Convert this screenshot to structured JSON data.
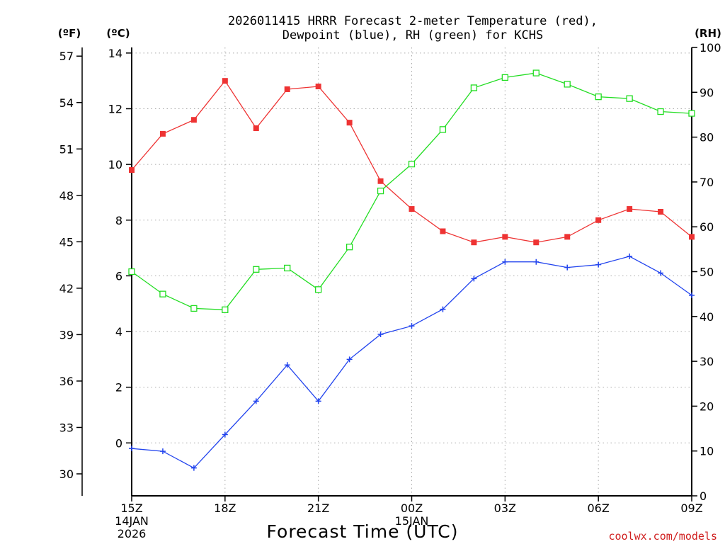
{
  "chart_data": {
    "type": "line",
    "title": "2026011415 HRRR Forecast 2-meter Temperature (red),",
    "subtitle": "Dewpoint (blue), RH (green) for KCHS",
    "xlabel": "Forecast Time (UTC)",
    "left_unit_f": "(ºF)",
    "left_unit_c": "(ºC)",
    "right_unit": "(RH)",
    "credit": "coolwx.com/models",
    "x_hours": [
      0,
      1,
      2,
      3,
      4,
      5,
      6,
      7,
      8,
      9,
      10,
      11,
      12,
      13,
      14,
      15,
      16,
      17,
      18
    ],
    "x_ticks": [
      {
        "hour": 0,
        "lines": [
          "15Z",
          "14JAN",
          "2026"
        ]
      },
      {
        "hour": 3,
        "lines": [
          "18Z"
        ]
      },
      {
        "hour": 6,
        "lines": [
          "21Z"
        ]
      },
      {
        "hour": 9,
        "lines": [
          "00Z",
          "15JAN"
        ]
      },
      {
        "hour": 12,
        "lines": [
          "03Z"
        ]
      },
      {
        "hour": 15,
        "lines": [
          "06Z"
        ]
      },
      {
        "hour": 18,
        "lines": [
          "09Z"
        ]
      }
    ],
    "y_celsius": {
      "range": [
        -1.9,
        14.2
      ],
      "ticks": [
        0,
        2,
        4,
        6,
        8,
        10,
        12,
        14
      ]
    },
    "y_fahrenheit": {
      "ticks": [
        30,
        33,
        36,
        39,
        42,
        45,
        48,
        51,
        54,
        57
      ]
    },
    "y_rh": {
      "range": [
        0,
        100
      ],
      "ticks": [
        0,
        10,
        20,
        30,
        40,
        50,
        60,
        70,
        80,
        90,
        100
      ]
    },
    "series": [
      {
        "name": "Temperature",
        "axis": "C",
        "color": "#ee3333",
        "marker": "filled-square",
        "values": [
          9.8,
          11.1,
          11.6,
          13.0,
          11.3,
          12.7,
          12.8,
          11.5,
          9.4,
          8.4,
          7.6,
          7.2,
          7.4,
          7.2,
          7.4,
          8.0,
          8.4,
          8.3,
          7.4
        ]
      },
      {
        "name": "Dewpoint",
        "axis": "C",
        "color": "#2244ee",
        "marker": "plus",
        "values": [
          -0.2,
          -0.3,
          -0.9,
          0.3,
          1.5,
          2.8,
          1.5,
          3.0,
          3.9,
          4.2,
          4.8,
          5.9,
          6.5,
          6.5,
          6.3,
          6.4,
          6.7,
          6.1,
          5.3
        ]
      },
      {
        "name": "RH",
        "axis": "RH",
        "color": "#22dd22",
        "marker": "open-square",
        "values": [
          50.0,
          45.0,
          41.8,
          41.5,
          50.5,
          50.8,
          46.0,
          55.5,
          68.0,
          74.0,
          81.7,
          91.0,
          93.3,
          94.3,
          91.8,
          89.0,
          88.6,
          85.7,
          85.3
        ]
      }
    ]
  }
}
